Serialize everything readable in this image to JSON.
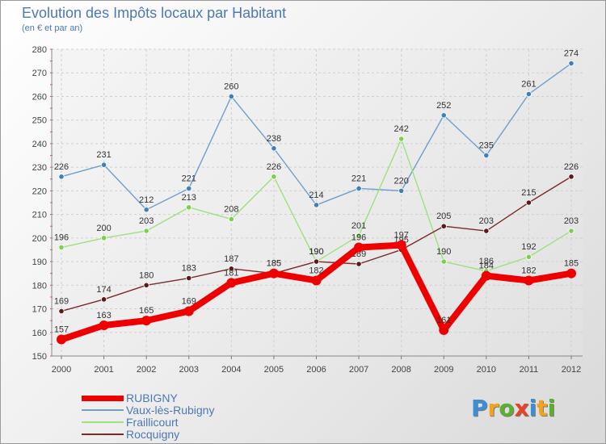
{
  "chart_data": {
    "type": "line",
    "title": "Evolution des Impôts locaux par Habitant",
    "subtitle": "(en € et par an)",
    "categories": [
      "2000",
      "2001",
      "2002",
      "2003",
      "2004",
      "2005",
      "2006",
      "2007",
      "2008",
      "2009",
      "2010",
      "2011",
      "2012"
    ],
    "ylim": [
      150,
      280
    ],
    "yticks": [
      150,
      160,
      170,
      180,
      190,
      200,
      210,
      220,
      230,
      240,
      250,
      260,
      270,
      280
    ],
    "grid": true,
    "series": [
      {
        "name": "Vaux-lès-Rubigny",
        "color": "#6f9fcc",
        "marker": "#3f7fbf",
        "values": [
          226,
          231,
          212,
          221,
          260,
          238,
          214,
          221,
          220,
          252,
          235,
          261,
          274
        ]
      },
      {
        "name": "Fraillicourt",
        "color": "#9fe07f",
        "marker": "#7fcf4f",
        "values": [
          196,
          200,
          203,
          213,
          208,
          226,
          190,
          201,
          242,
          190,
          186,
          192,
          203
        ]
      },
      {
        "name": "Rocquigny",
        "color": "#7a2a2a",
        "marker": "#5a1a1a",
        "values": [
          169,
          174,
          180,
          183,
          187,
          185,
          190,
          189,
          195,
          205,
          203,
          215,
          226
        ]
      },
      {
        "name": "RUBIGNY",
        "color": "#ee0000",
        "marker": "#ee0000",
        "values": [
          157,
          163,
          165,
          169,
          181,
          185,
          182,
          196,
          197,
          161,
          184,
          182,
          185
        ]
      }
    ],
    "legend": [
      {
        "name": "RUBIGNY",
        "color": "#ee0000",
        "weight": "thick"
      },
      {
        "name": "Vaux-lès-Rubigny",
        "color": "#6f9fcc",
        "weight": "thin"
      },
      {
        "name": "Fraillicourt",
        "color": "#9fe07f",
        "weight": "thin"
      },
      {
        "name": "Rocquigny",
        "color": "#7a2a2a",
        "weight": "thin"
      }
    ]
  },
  "logo": {
    "letters": [
      "P",
      "r",
      "o",
      "x",
      "i",
      "t",
      "i"
    ],
    "colors": [
      "#3a8fd6",
      "#f5a21c",
      "#5bb030",
      "#e8402a",
      "#3a8fd6",
      "#f5a21c",
      "#5bb030"
    ]
  }
}
